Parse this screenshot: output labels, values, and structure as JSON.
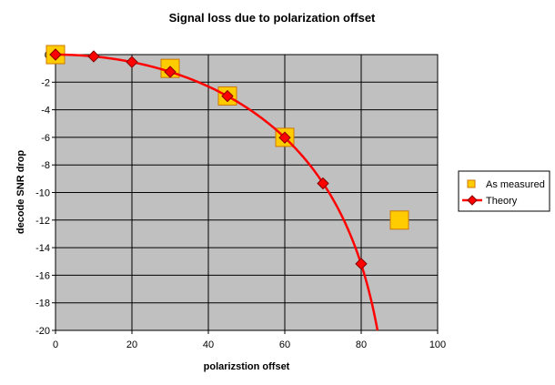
{
  "chart_data": {
    "type": "scatter",
    "title": "Signal loss due to polarization offset",
    "xlabel": "polarizstion offset",
    "ylabel": "decode SNR drop",
    "xlim": [
      0,
      100
    ],
    "ylim": [
      -20,
      0
    ],
    "x_ticks": [
      "0",
      "20",
      "40",
      "60",
      "80",
      "100"
    ],
    "y_ticks": [
      "0",
      "-2",
      "-4",
      "-6",
      "-8",
      "-10",
      "-12",
      "-14",
      "-16",
      "-18",
      "-20"
    ],
    "grid": true,
    "legend_position": "right",
    "series": [
      {
        "name": "As measured",
        "marker": "square",
        "color": "#FFCC00",
        "x": [
          0,
          30,
          45,
          60,
          90
        ],
        "y": [
          0,
          -1,
          -3,
          -6,
          -12
        ]
      },
      {
        "name": "Theory",
        "marker": "diamond-line",
        "color": "#FF0000",
        "x": [
          0,
          10,
          20,
          30,
          45,
          60,
          70,
          80
        ],
        "y": [
          0,
          -0.13,
          -0.54,
          -1.25,
          -3.01,
          -6.02,
          -9.34,
          -15.17
        ]
      }
    ],
    "colors": {
      "plot_background": "#C0C0C0",
      "grid": "#000000",
      "measured_fill": "#FFCC00",
      "measured_edge": "#CC7700",
      "theory_line": "#FF0000",
      "theory_marker_edge": "#800000"
    }
  }
}
